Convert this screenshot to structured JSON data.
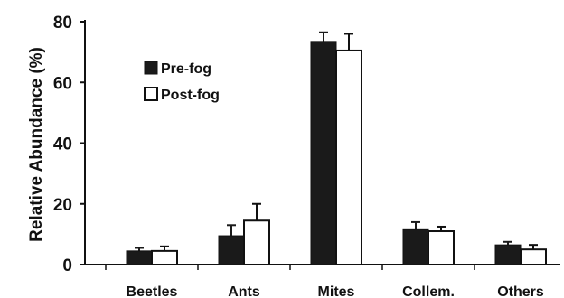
{
  "chart_data": {
    "type": "bar",
    "ylabel": "Relative Abundance (%)",
    "xlabel": "",
    "ylim": [
      0,
      80
    ],
    "yticks": [
      0,
      20,
      40,
      60,
      80
    ],
    "categories": [
      "Beetles",
      "Ants",
      "Mites",
      "Collem.",
      "Others"
    ],
    "series": [
      {
        "name": "Pre-fog",
        "color": "#1a1a1a",
        "fill_style": "solid",
        "values": [
          4.5,
          9.5,
          73.5,
          11.5,
          6.5
        ],
        "errors": [
          1.0,
          3.5,
          3.0,
          2.5,
          1.0
        ]
      },
      {
        "name": "Post-fog",
        "color": "#ffffff",
        "fill_style": "open",
        "values": [
          4.5,
          14.5,
          70.5,
          11.0,
          5.0
        ],
        "errors": [
          1.5,
          5.5,
          5.5,
          1.5,
          1.5
        ]
      }
    ],
    "legend_position": "top-left",
    "grid": false,
    "error_bars": "upper"
  }
}
